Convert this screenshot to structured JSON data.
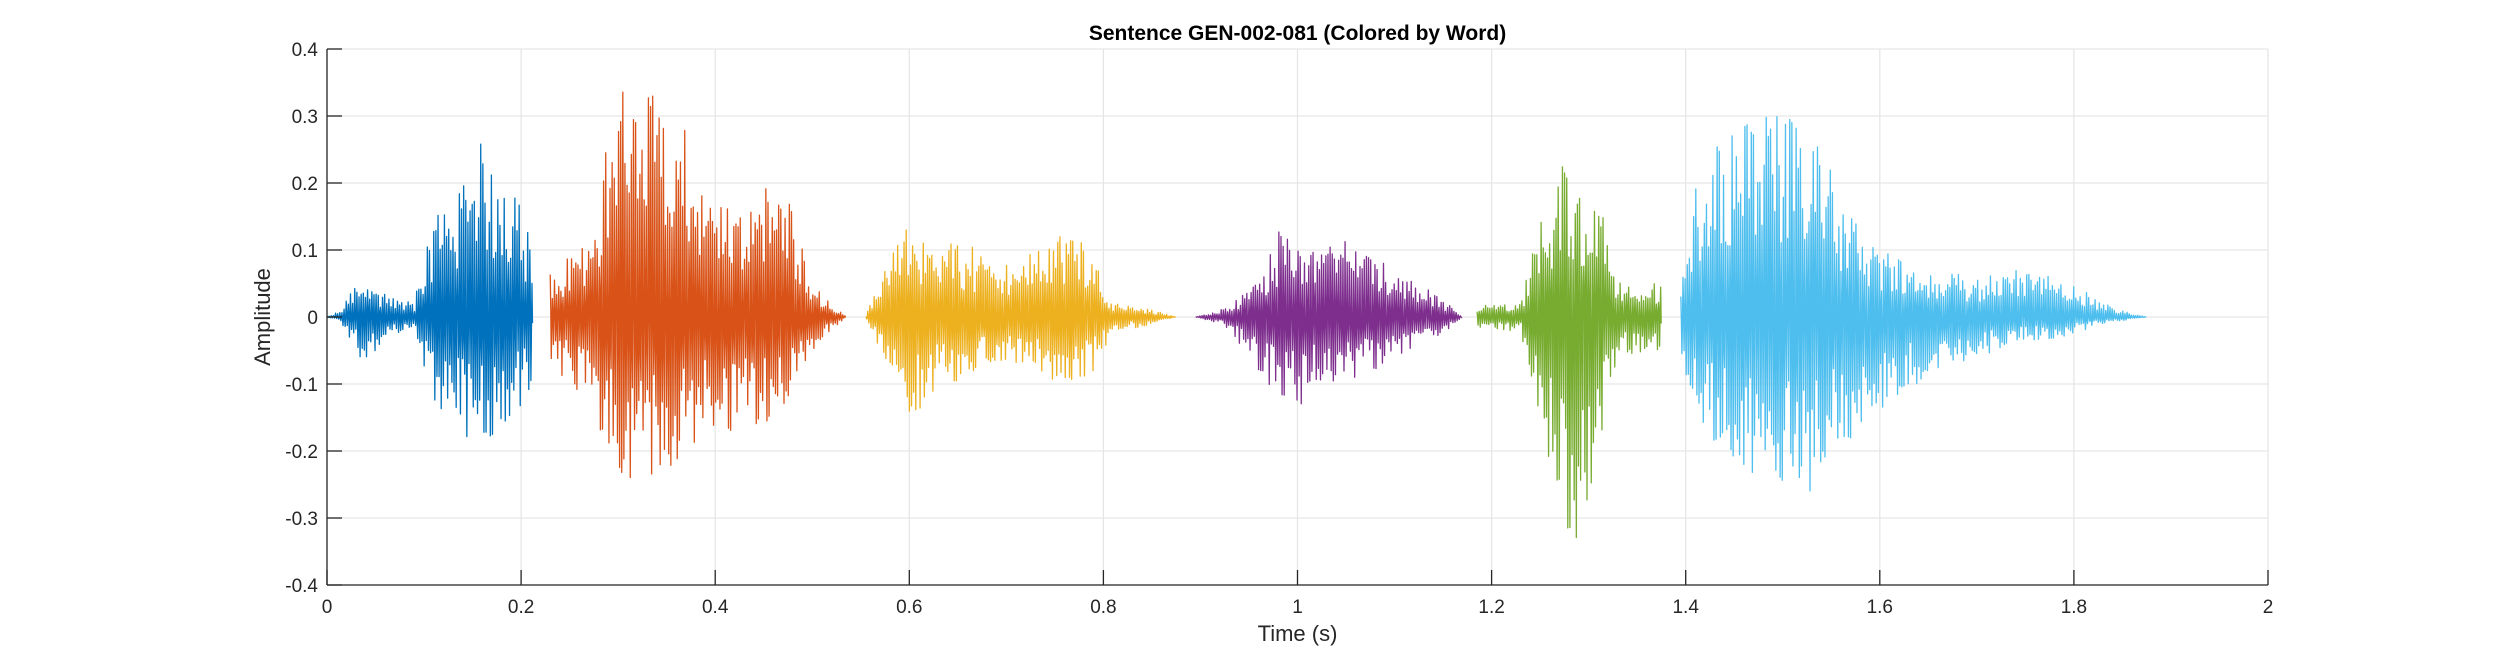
{
  "chart_data": {
    "type": "line",
    "title": "Sentence GEN-002-081 (Colored by Word)",
    "xlabel": "Time (s)",
    "ylabel": "Amplitude",
    "xlim": [
      0,
      2
    ],
    "ylim": [
      -0.4,
      0.4
    ],
    "grid": true,
    "legend": "none",
    "x_ticks": [
      0,
      0.2,
      0.4,
      0.6,
      0.8,
      1,
      1.2,
      1.4,
      1.6,
      1.8,
      2
    ],
    "x_tick_labels": [
      "0",
      "0.2",
      "0.4",
      "0.6",
      "0.8",
      "1",
      "1.2",
      "1.4",
      "1.6",
      "1.8",
      "2"
    ],
    "y_ticks": [
      -0.4,
      -0.3,
      -0.2,
      -0.1,
      0,
      0.1,
      0.2,
      0.3,
      0.4
    ],
    "y_tick_labels": [
      "-0.4",
      "-0.3",
      "-0.2",
      "-0.1",
      "0",
      "0.1",
      "0.2",
      "0.3",
      "0.4"
    ],
    "series": [
      {
        "color": "#0072BD",
        "t_start": 0.0,
        "t_end": 0.212,
        "envelope": [
          [
            0.0,
            0.0,
            0.0
          ],
          [
            0.012,
            0.008,
            0.006
          ],
          [
            0.025,
            0.04,
            0.035
          ],
          [
            0.04,
            0.06,
            0.08
          ],
          [
            0.055,
            0.04,
            0.04
          ],
          [
            0.07,
            0.03,
            0.025
          ],
          [
            0.09,
            0.02,
            0.015
          ],
          [
            0.1,
            0.1,
            0.09
          ],
          [
            0.115,
            0.16,
            0.15
          ],
          [
            0.135,
            0.18,
            0.17
          ],
          [
            0.16,
            0.27,
            0.2
          ],
          [
            0.18,
            0.23,
            0.18
          ],
          [
            0.2,
            0.17,
            0.13
          ],
          [
            0.212,
            0.11,
            0.1
          ]
        ]
      },
      {
        "color": "#D95319",
        "t_start": 0.23,
        "t_end": 0.535,
        "envelope": [
          [
            0.23,
            0.07,
            0.07
          ],
          [
            0.25,
            0.09,
            0.1
          ],
          [
            0.27,
            0.13,
            0.13
          ],
          [
            0.29,
            0.28,
            0.2
          ],
          [
            0.31,
            0.36,
            0.25
          ],
          [
            0.33,
            0.35,
            0.24
          ],
          [
            0.36,
            0.32,
            0.22
          ],
          [
            0.39,
            0.2,
            0.17
          ],
          [
            0.42,
            0.15,
            0.18
          ],
          [
            0.44,
            0.19,
            0.17
          ],
          [
            0.46,
            0.24,
            0.17
          ],
          [
            0.48,
            0.16,
            0.12
          ],
          [
            0.5,
            0.05,
            0.05
          ],
          [
            0.52,
            0.02,
            0.02
          ],
          [
            0.535,
            0.0,
            0.0
          ]
        ]
      },
      {
        "color": "#EDB120",
        "t_start": 0.555,
        "t_end": 0.875,
        "envelope": [
          [
            0.555,
            0.0,
            0.0
          ],
          [
            0.57,
            0.06,
            0.06
          ],
          [
            0.6,
            0.14,
            0.16
          ],
          [
            0.62,
            0.1,
            0.12
          ],
          [
            0.65,
            0.12,
            0.1
          ],
          [
            0.67,
            0.1,
            0.08
          ],
          [
            0.7,
            0.08,
            0.07
          ],
          [
            0.73,
            0.1,
            0.08
          ],
          [
            0.77,
            0.14,
            0.11
          ],
          [
            0.79,
            0.1,
            0.08
          ],
          [
            0.81,
            0.02,
            0.02
          ],
          [
            0.84,
            0.015,
            0.015
          ],
          [
            0.875,
            0.0,
            0.0
          ]
        ]
      },
      {
        "color": "#7E2F8E",
        "t_start": 0.895,
        "t_end": 1.17,
        "envelope": [
          [
            0.895,
            0.0,
            0.0
          ],
          [
            0.92,
            0.01,
            0.01
          ],
          [
            0.94,
            0.03,
            0.04
          ],
          [
            0.96,
            0.06,
            0.08
          ],
          [
            0.98,
            0.13,
            0.13
          ],
          [
            1.0,
            0.11,
            0.14
          ],
          [
            1.02,
            0.1,
            0.1
          ],
          [
            1.05,
            0.12,
            0.1
          ],
          [
            1.08,
            0.09,
            0.08
          ],
          [
            1.1,
            0.07,
            0.06
          ],
          [
            1.14,
            0.04,
            0.04
          ],
          [
            1.17,
            0.0,
            0.0
          ]
        ]
      },
      {
        "color": "#77AC30",
        "t_start": 1.185,
        "t_end": 1.375,
        "envelope": [
          [
            1.185,
            0.015,
            0.015
          ],
          [
            1.2,
            0.02,
            0.02
          ],
          [
            1.23,
            0.02,
            0.02
          ],
          [
            1.25,
            0.15,
            0.18
          ],
          [
            1.27,
            0.23,
            0.32
          ],
          [
            1.29,
            0.22,
            0.34
          ],
          [
            1.31,
            0.18,
            0.2
          ],
          [
            1.33,
            0.06,
            0.06
          ],
          [
            1.36,
            0.05,
            0.05
          ],
          [
            1.375,
            0.05,
            0.05
          ]
        ]
      },
      {
        "color": "#4DBEEE",
        "t_start": 1.395,
        "t_end": 1.875,
        "envelope": [
          [
            1.395,
            0.05,
            0.06
          ],
          [
            1.41,
            0.2,
            0.15
          ],
          [
            1.44,
            0.29,
            0.21
          ],
          [
            1.47,
            0.32,
            0.24
          ],
          [
            1.49,
            0.3,
            0.25
          ],
          [
            1.51,
            0.32,
            0.27
          ],
          [
            1.53,
            0.29,
            0.26
          ],
          [
            1.56,
            0.18,
            0.2
          ],
          [
            1.6,
            0.1,
            0.14
          ],
          [
            1.65,
            0.07,
            0.09
          ],
          [
            1.7,
            0.06,
            0.06
          ],
          [
            1.74,
            0.07,
            0.04
          ],
          [
            1.79,
            0.06,
            0.03
          ],
          [
            1.83,
            0.02,
            0.01
          ],
          [
            1.875,
            0.0,
            0.0
          ]
        ]
      }
    ]
  }
}
